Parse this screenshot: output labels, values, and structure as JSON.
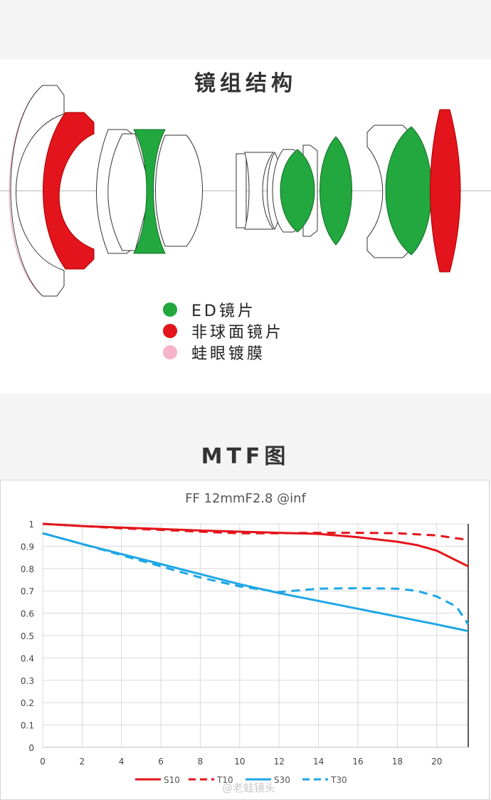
{
  "lens_section": {
    "title": "镜组结构",
    "legend": [
      {
        "label": "ED镜片",
        "color": "#22a83e"
      },
      {
        "label": "非球面镜片",
        "color": "#e3141b"
      },
      {
        "label": "蛙眼镀膜",
        "color": "#f6b3c8"
      }
    ]
  },
  "mtf_section": {
    "title": "MTF图"
  },
  "watermark": "@老蛙镜头",
  "chart_data": {
    "type": "line",
    "title": "FF 12mmF2.8 @inf",
    "xlabel": "",
    "ylabel": "",
    "xlim": [
      0,
      21.6
    ],
    "ylim": [
      0,
      1
    ],
    "grid": true,
    "legend_position": "bottom",
    "x_ticks": [
      0,
      2,
      4,
      6,
      8,
      10,
      12,
      14,
      16,
      18,
      20
    ],
    "y_ticks": [
      0,
      0.1,
      0.2,
      0.3,
      0.4,
      0.5,
      0.6,
      0.7,
      0.8,
      0.9,
      1
    ],
    "y_tick_labels": [
      "0",
      "0.1",
      "0.2",
      "0.3",
      "0.4",
      "0.5",
      "0.6",
      "0.7",
      "0.8",
      "0.9",
      "1"
    ],
    "series": [
      {
        "name": "S10",
        "color": "#e3141b",
        "dashed": false,
        "x": [
          0,
          2,
          4,
          6,
          8,
          10,
          12,
          14,
          16,
          18,
          19,
          20,
          21.6
        ],
        "y": [
          1.0,
          0.99,
          0.983,
          0.977,
          0.97,
          0.965,
          0.96,
          0.955,
          0.94,
          0.92,
          0.905,
          0.88,
          0.81
        ]
      },
      {
        "name": "T10",
        "color": "#e3141b",
        "dashed": true,
        "x": [
          0,
          2,
          4,
          6,
          8,
          10,
          12,
          14,
          16,
          18,
          20,
          21.6
        ],
        "y": [
          1.0,
          0.99,
          0.98,
          0.973,
          0.965,
          0.958,
          0.958,
          0.96,
          0.96,
          0.958,
          0.948,
          0.928
        ]
      },
      {
        "name": "S30",
        "color": "#1ea6e6",
        "dashed": false,
        "x": [
          0,
          2,
          4,
          6,
          8,
          10,
          12,
          14,
          16,
          18,
          20,
          21.6
        ],
        "y": [
          0.958,
          0.91,
          0.865,
          0.82,
          0.775,
          0.73,
          0.69,
          0.655,
          0.62,
          0.585,
          0.55,
          0.52
        ]
      },
      {
        "name": "T30",
        "color": "#1ea6e6",
        "dashed": true,
        "x": [
          0,
          2,
          4,
          6,
          8,
          10,
          12,
          14,
          16,
          18,
          19,
          20,
          21,
          21.6
        ],
        "y": [
          0.958,
          0.91,
          0.86,
          0.81,
          0.76,
          0.72,
          0.695,
          0.71,
          0.712,
          0.71,
          0.7,
          0.675,
          0.63,
          0.55
        ]
      }
    ]
  }
}
